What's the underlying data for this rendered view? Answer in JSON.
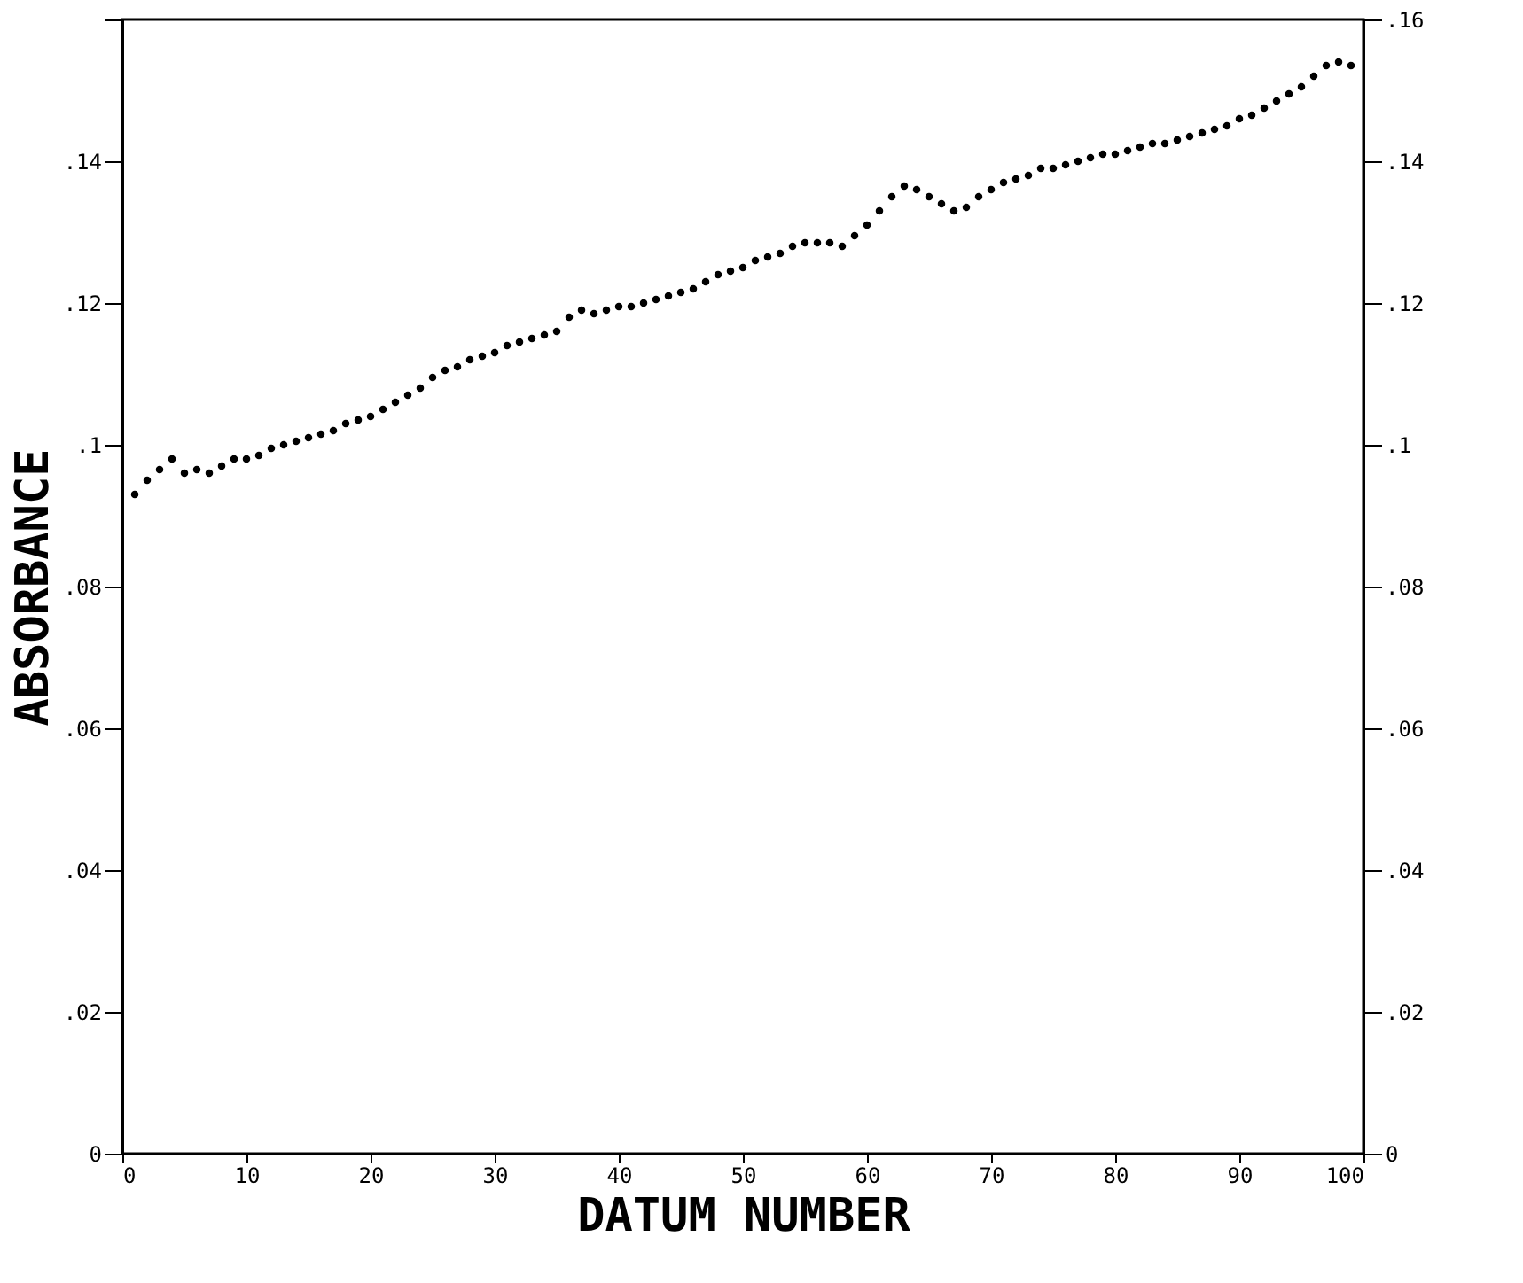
{
  "chart_data": {
    "type": "scatter",
    "xlabel": "DATUM NUMBER",
    "ylabel": "ABSORBANCE",
    "x": [
      1,
      2,
      3,
      4,
      5,
      6,
      7,
      8,
      9,
      10,
      11,
      12,
      13,
      14,
      15,
      16,
      17,
      18,
      19,
      20,
      21,
      22,
      23,
      24,
      25,
      26,
      27,
      28,
      29,
      30,
      31,
      32,
      33,
      34,
      35,
      36,
      37,
      38,
      39,
      40,
      41,
      42,
      43,
      44,
      45,
      46,
      47,
      48,
      49,
      50,
      51,
      52,
      53,
      54,
      55,
      56,
      57,
      58,
      59,
      60,
      61,
      62,
      63,
      64,
      65,
      66,
      67,
      68,
      69,
      70,
      71,
      72,
      73,
      74,
      75,
      76,
      77,
      78,
      79,
      80,
      81,
      82,
      83,
      84,
      85,
      86,
      87,
      88,
      89,
      90,
      91,
      92,
      93,
      94,
      95,
      96,
      97,
      98,
      99
    ],
    "series": [
      {
        "color": "#000000",
        "values": [
          0.093,
          0.095,
          0.0965,
          0.098,
          0.096,
          0.0965,
          0.096,
          0.097,
          0.098,
          0.098,
          0.0985,
          0.0995,
          0.1,
          0.1005,
          0.101,
          0.1015,
          0.102,
          0.103,
          0.1035,
          0.104,
          0.105,
          0.106,
          0.107,
          0.108,
          0.1095,
          0.1105,
          0.111,
          0.112,
          0.1125,
          0.113,
          0.114,
          0.1145,
          0.115,
          0.1155,
          0.116,
          0.118,
          0.119,
          0.1185,
          0.119,
          0.1195,
          0.1195,
          0.12,
          0.1205,
          0.121,
          0.1215,
          0.122,
          0.123,
          0.124,
          0.1245,
          0.125,
          0.126,
          0.1265,
          0.127,
          0.128,
          0.1285,
          0.1285,
          0.1285,
          0.128,
          0.1295,
          0.131,
          0.133,
          0.135,
          0.1365,
          0.136,
          0.135,
          0.134,
          0.133,
          0.1335,
          0.135,
          0.136,
          0.137,
          0.1375,
          0.138,
          0.139,
          0.139,
          0.1395,
          0.14,
          0.1405,
          0.141,
          0.141,
          0.1415,
          0.142,
          0.1425,
          0.1425,
          0.143,
          0.1435,
          0.144,
          0.1445,
          0.145,
          0.146,
          0.1465,
          0.1475,
          0.1485,
          0.1495,
          0.1505,
          0.152,
          0.1535,
          0.154,
          0.1535
        ]
      }
    ],
    "xlim": [
      0,
      100
    ],
    "xticks": [
      0,
      10,
      20,
      30,
      40,
      50,
      60,
      70,
      80,
      90,
      100
    ],
    "ylim": [
      0,
      0.16
    ],
    "yticks": [
      0,
      {
        "value": 0.02,
        "label": ".02"
      },
      {
        "value": 0.04,
        "label": ".04"
      },
      {
        "value": 0.06,
        "label": ".06"
      },
      {
        "value": 0.08,
        "label": ".08"
      },
      {
        "value": 0.1,
        "label": ".1"
      },
      {
        "value": 0.12,
        "label": ".12"
      },
      {
        "value": 0.14,
        "label": ".14"
      },
      {
        "value": 0.16,
        "label": null
      }
    ],
    "y2lim": [
      0,
      0.16
    ],
    "y2ticks": [
      0,
      {
        "value": 0.02,
        "label": ".02"
      },
      {
        "value": 0.04,
        "label": ".04"
      },
      {
        "value": 0.06,
        "label": ".06"
      },
      {
        "value": 0.08,
        "label": ".08"
      },
      {
        "value": 0.1,
        "label": ".1"
      },
      {
        "value": 0.12,
        "label": ".12"
      },
      {
        "value": 0.14,
        "label": ".14"
      },
      {
        "value": 0.16,
        "label": ".16"
      }
    ],
    "marker": "circle"
  }
}
